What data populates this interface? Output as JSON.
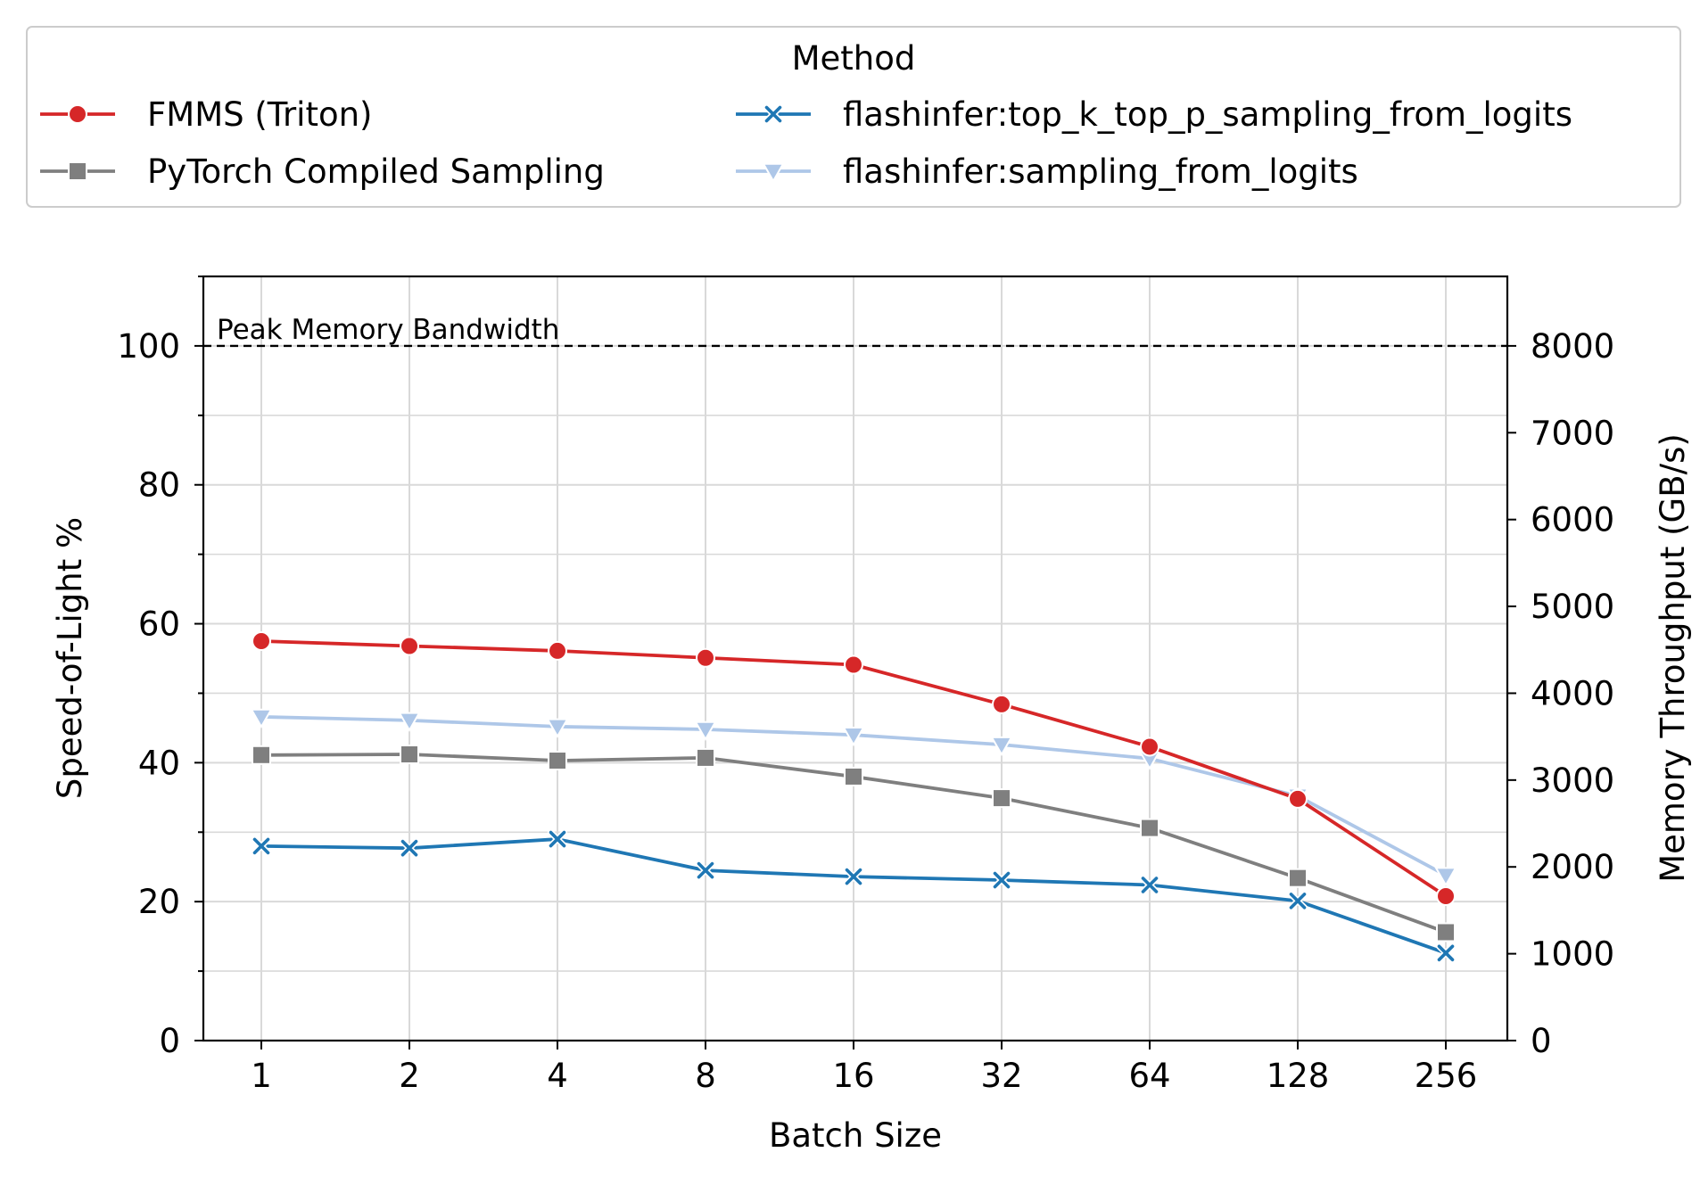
{
  "chart_data": {
    "type": "line",
    "title": "",
    "xlabel": "Batch Size",
    "ylabel": "Speed-of-Light %",
    "y2label": "Memory Throughput (GB/s)",
    "categories": [
      "1",
      "2",
      "4",
      "8",
      "16",
      "32",
      "64",
      "128",
      "256"
    ],
    "ylim": [
      0,
      110
    ],
    "yticks": [
      0,
      20,
      40,
      60,
      80,
      100
    ],
    "y2lim": [
      0,
      8800
    ],
    "y2ticks": [
      0,
      1000,
      2000,
      3000,
      4000,
      5000,
      6000,
      7000,
      8000
    ],
    "grid": true,
    "legend": {
      "title": "Method",
      "placement": "top, above plot"
    },
    "reference_line": {
      "label": "Peak Memory Bandwidth",
      "y": 100,
      "style": "dashed",
      "color": "#000000"
    },
    "series": [
      {
        "name": "FMMS (Triton)",
        "color": "#d62728",
        "marker": "circle",
        "values": [
          57.5,
          56.8,
          56.1,
          55.1,
          54.1,
          48.4,
          42.3,
          34.8,
          20.8
        ]
      },
      {
        "name": "PyTorch Compiled Sampling",
        "color": "#7f7f7f",
        "marker": "square",
        "values": [
          41.1,
          41.2,
          40.3,
          40.7,
          38.0,
          34.9,
          30.6,
          23.4,
          15.6
        ]
      },
      {
        "name": "flashinfer:top_k_top_p_sampling_from_logits",
        "color": "#1f77b4",
        "marker": "x",
        "values": [
          28.0,
          27.7,
          29.0,
          24.5,
          23.6,
          23.1,
          22.4,
          20.1,
          12.6
        ]
      },
      {
        "name": "flashinfer:sampling_from_logits",
        "color": "#aec7e8",
        "marker": "triangle-down",
        "values": [
          46.6,
          46.1,
          45.2,
          44.8,
          44.0,
          42.6,
          40.6,
          35.2,
          23.8
        ]
      }
    ]
  }
}
